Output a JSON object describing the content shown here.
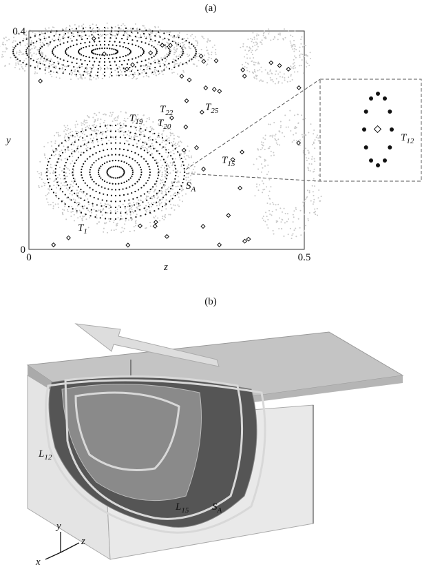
{
  "panel_a": {
    "label": "(a)",
    "xlabel": "z",
    "ylabel": "y",
    "xlim": [
      0,
      0.5
    ],
    "ylim": [
      0,
      0.4
    ],
    "xticks": [
      0,
      0.5
    ],
    "yticks": [
      0,
      0.4
    ],
    "annotations": [
      {
        "base": "T",
        "sub": "22"
      },
      {
        "base": "T",
        "sub": "19"
      },
      {
        "base": "T",
        "sub": "20"
      },
      {
        "base": "T",
        "sub": "25"
      },
      {
        "base": "T",
        "sub": "15"
      },
      {
        "base": "S",
        "sub": "A"
      },
      {
        "base": "T",
        "sub": "1"
      },
      {
        "base": "T",
        "sub": "12"
      }
    ]
  },
  "panel_b": {
    "label": "(b)",
    "annotations": [
      {
        "base": "L",
        "sub": "12"
      },
      {
        "base": "L",
        "sub": "15"
      },
      {
        "base": "S",
        "sub": "A"
      }
    ],
    "axes": [
      "y",
      "z",
      "x"
    ]
  }
}
